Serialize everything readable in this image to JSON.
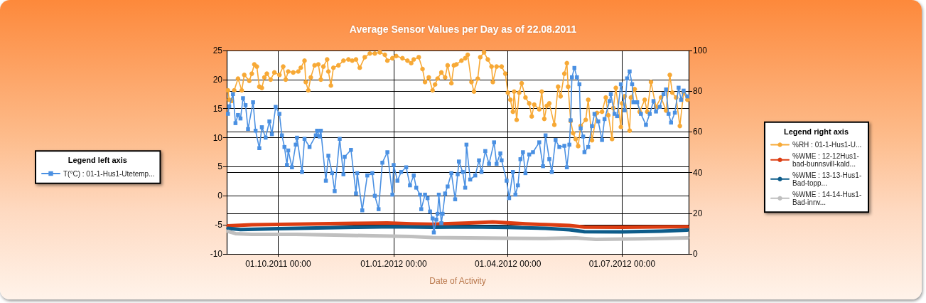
{
  "chart_data": {
    "type": "line",
    "title": "Average Sensor Values per Day as of 22.08.2011",
    "xlabel": "Date of Activity",
    "legend_title": [
      "Legend left axis",
      "Legend right axis"
    ],
    "legend": [
      "left",
      "right"
    ],
    "xlim": [
      "2011-08-21",
      "2012-08-23"
    ],
    "xticks": [
      {
        "value": "2011-10-01",
        "label": "01.10.2011 00:00"
      },
      {
        "value": "2012-01-01",
        "label": "01.01.2012 00:00"
      },
      {
        "value": "2012-04-01",
        "label": "01.04.2012 00:00"
      },
      {
        "value": "2012-07-01",
        "label": "01.07.2012 00:00"
      }
    ],
    "ylim": [
      -10,
      25
    ],
    "yticks": [
      -10,
      -5,
      0,
      5,
      10,
      15,
      20,
      25
    ],
    "y2lim": [
      0,
      100
    ],
    "y2ticks": [
      0,
      20,
      40,
      60,
      80,
      100
    ],
    "grid": true,
    "line_style": "solid",
    "series": [
      {
        "name": "T(°C) : 01-1-Hus1-Utetemp...",
        "color": "#4a90e2",
        "marker": "square",
        "x": [
          "2011-08-22",
          "2011-08-23",
          "2011-08-26",
          "2011-08-28",
          "2011-08-30",
          "2011-09-01",
          "2011-09-03",
          "2011-09-05",
          "2011-09-07",
          "2011-09-11",
          "2011-09-13",
          "2011-09-16",
          "2011-09-18",
          "2011-09-21",
          "2011-09-24",
          "2011-09-26",
          "2011-09-29",
          "2011-10-02",
          "2011-10-04",
          "2011-10-06",
          "2011-10-08",
          "2011-10-09",
          "2011-10-12",
          "2011-10-15",
          "2011-10-16",
          "2011-10-20",
          "2011-10-22",
          "2011-10-26",
          "2011-10-31",
          "2011-11-01",
          "2011-11-03",
          "2011-11-04",
          "2011-11-08",
          "2011-11-10",
          "2011-11-13",
          "2011-11-15",
          "2011-11-19",
          "2011-11-22",
          "2011-11-23",
          "2011-11-28",
          "2011-12-02",
          "2011-12-03",
          "2011-12-07",
          "2011-12-11",
          "2011-12-15",
          "2011-12-17",
          "2011-12-20",
          "2011-12-23",
          "2011-12-27",
          "2011-12-31",
          "2012-01-01",
          "2012-01-04",
          "2012-01-07",
          "2012-01-11",
          "2012-01-14",
          "2012-01-17",
          "2012-01-19",
          "2012-01-22",
          "2012-01-23",
          "2012-01-26",
          "2012-01-28",
          "2012-01-30",
          "2012-02-01",
          "2012-02-02",
          "2012-02-04",
          "2012-02-05",
          "2012-02-06",
          "2012-02-08",
          "2012-02-09",
          "2012-02-11",
          "2012-02-13",
          "2012-02-16",
          "2012-02-19",
          "2012-02-21",
          "2012-02-22",
          "2012-02-25",
          "2012-02-27",
          "2012-02-28",
          "2012-03-02",
          "2012-03-06",
          "2012-03-09",
          "2012-03-11",
          "2012-03-14",
          "2012-03-17",
          "2012-03-21",
          "2012-03-23",
          "2012-03-26",
          "2012-03-27",
          "2012-03-31",
          "2012-04-02",
          "2012-04-05",
          "2012-04-07",
          "2012-04-09",
          "2012-04-11",
          "2012-04-13",
          "2012-04-15",
          "2012-04-18",
          "2012-04-21",
          "2012-04-26",
          "2012-04-29",
          "2012-05-01",
          "2012-05-04",
          "2012-05-06",
          "2012-05-09",
          "2012-05-12",
          "2012-05-16",
          "2012-05-18",
          "2012-05-20",
          "2012-05-21",
          "2012-05-22",
          "2012-05-24",
          "2012-05-26",
          "2012-05-28",
          "2012-05-29",
          "2012-05-31",
          "2012-06-01",
          "2012-06-04",
          "2012-06-07",
          "2012-06-09",
          "2012-06-12",
          "2012-06-15",
          "2012-06-17",
          "2012-06-21",
          "2012-06-22",
          "2012-06-25",
          "2012-06-27",
          "2012-06-30",
          "2012-07-03",
          "2012-07-05",
          "2012-07-07",
          "2012-07-09",
          "2012-07-10",
          "2012-07-13",
          "2012-07-16",
          "2012-07-20",
          "2012-07-23",
          "2012-07-26",
          "2012-07-28",
          "2012-07-31",
          "2012-08-03",
          "2012-08-05",
          "2012-08-07",
          "2012-08-09",
          "2012-08-12",
          "2012-08-15",
          "2012-08-17",
          "2012-08-19",
          "2012-08-22"
        ],
        "values": [
          14.1,
          15.4,
          17.5,
          12.5,
          13.9,
          13.3,
          16.8,
          15.6,
          11.5,
          16.1,
          11.2,
          8.2,
          11.8,
          10.0,
          12.8,
          10.6,
          15.3,
          14.1,
          10.4,
          8.4,
          5.3,
          7.8,
          4.9,
          8.8,
          10.0,
          4.1,
          9.8,
          8.4,
          10.4,
          11.2,
          10.2,
          11.2,
          2.6,
          6.9,
          3.9,
          0.8,
          9.8,
          3.7,
          6.7,
          7.9,
          0.4,
          3.9,
          -2.5,
          3.5,
          3.9,
          0.0,
          -2.3,
          5.7,
          7.5,
          0.2,
          5.3,
          2.6,
          4.1,
          4.9,
          1.8,
          3.5,
          1.4,
          0.2,
          -2.3,
          0.2,
          -0.4,
          -2.7,
          -3.9,
          -6.3,
          -4.1,
          -3.1,
          0.2,
          -4.7,
          -3.1,
          0.4,
          1.6,
          3.9,
          -0.6,
          3.7,
          5.9,
          4.1,
          1.4,
          8.8,
          2.8,
          3.5,
          6.1,
          4.1,
          7.7,
          5.5,
          9.2,
          5.5,
          7.3,
          6.1,
          2.6,
          -0.4,
          4.1,
          0.2,
          1.8,
          6.3,
          7.5,
          3.9,
          7.1,
          7.5,
          9.2,
          5.1,
          10.4,
          6.3,
          4.1,
          9.6,
          8.4,
          8.6,
          4.9,
          8.8,
          13.0,
          20.4,
          22.0,
          20.4,
          19.2,
          11.6,
          10.2,
          7.5,
          8.4,
          12.0,
          14.1,
          12.8,
          9.6,
          13.2,
          16.3,
          17.5,
          14.1,
          13.7,
          19.2,
          14.7,
          20.2,
          21.4,
          19.2,
          16.1,
          16.1,
          14.1,
          12.2,
          14.1,
          16.3,
          14.5,
          15.3,
          17.5,
          18.3,
          14.1,
          12.6,
          14.3,
          18.6,
          16.5,
          18.1,
          17.1
        ]
      },
      {
        "name": "%RH : 01-1-Hus1-U...",
        "color": "#f7a936",
        "marker": "circle",
        "axis": "y2",
        "x": [
          "2011-08-22",
          "2011-08-23",
          "2011-08-25",
          "2011-08-27",
          "2011-08-30",
          "2011-09-02",
          "2011-09-04",
          "2011-09-08",
          "2011-09-10",
          "2011-09-12",
          "2011-09-14",
          "2011-09-16",
          "2011-09-18",
          "2011-09-20",
          "2011-09-22",
          "2011-09-25",
          "2011-09-28",
          "2011-10-02",
          "2011-10-05",
          "2011-10-07",
          "2011-10-09",
          "2011-10-13",
          "2011-10-17",
          "2011-10-19",
          "2011-10-22",
          "2011-10-23",
          "2011-10-25",
          "2011-10-27",
          "2011-10-30",
          "2011-11-02",
          "2011-11-04",
          "2011-11-06",
          "2011-11-09",
          "2011-11-10",
          "2011-11-12",
          "2011-11-14",
          "2011-11-18",
          "2011-11-22",
          "2011-11-26",
          "2011-11-29",
          "2011-12-02",
          "2011-12-05",
          "2011-12-09",
          "2011-12-13",
          "2011-12-17",
          "2011-12-21",
          "2011-12-25",
          "2011-12-27",
          "2011-12-31",
          "2012-01-03",
          "2012-01-08",
          "2012-01-12",
          "2012-01-15",
          "2012-01-17",
          "2012-01-21",
          "2012-01-24",
          "2012-01-26",
          "2012-01-29",
          "2012-02-01",
          "2012-02-03",
          "2012-02-05",
          "2012-02-08",
          "2012-02-11",
          "2012-02-13",
          "2012-02-16",
          "2012-02-18",
          "2012-02-20",
          "2012-02-24",
          "2012-02-27",
          "2012-02-29",
          "2012-03-03",
          "2012-03-05",
          "2012-03-08",
          "2012-03-10",
          "2012-03-13",
          "2012-03-16",
          "2012-03-19",
          "2012-03-20",
          "2012-03-23",
          "2012-03-27",
          "2012-03-30",
          "2012-04-01",
          "2012-04-03",
          "2012-04-05",
          "2012-04-06",
          "2012-04-08",
          "2012-04-10",
          "2012-04-12",
          "2012-04-15",
          "2012-04-18",
          "2012-04-20",
          "2012-04-22",
          "2012-04-26",
          "2012-04-28",
          "2012-04-30",
          "2012-05-02",
          "2012-05-04",
          "2012-05-08",
          "2012-05-11",
          "2012-05-13",
          "2012-05-16",
          "2012-05-18",
          "2012-05-19",
          "2012-05-21",
          "2012-05-23",
          "2012-05-25",
          "2012-05-27",
          "2012-05-29",
          "2012-06-02",
          "2012-06-04",
          "2012-06-07",
          "2012-06-11",
          "2012-06-15",
          "2012-06-18",
          "2012-06-20",
          "2012-06-23",
          "2012-06-24",
          "2012-06-26",
          "2012-06-30",
          "2012-07-01",
          "2012-07-03",
          "2012-07-07",
          "2012-07-08",
          "2012-07-11",
          "2012-07-15",
          "2012-07-19",
          "2012-07-21",
          "2012-07-24",
          "2012-07-28",
          "2012-08-01",
          "2012-08-05",
          "2012-08-08",
          "2012-08-10",
          "2012-08-13",
          "2012-08-16",
          "2012-08-19",
          "2012-08-22"
        ],
        "values": [
          80.4,
          75.8,
          75.2,
          80.4,
          86.2,
          80.4,
          88.0,
          85.1,
          88.6,
          93.2,
          92.1,
          82.2,
          81.6,
          86.8,
          88.6,
          85.7,
          89.2,
          88.0,
          92.1,
          85.7,
          89.7,
          89.2,
          89.7,
          91.5,
          95.0,
          84.5,
          80.4,
          86.8,
          92.7,
          93.2,
          85.7,
          92.1,
          95.6,
          89.7,
          82.8,
          91.5,
          92.7,
          95.0,
          95.6,
          95.0,
          95.6,
          91.5,
          96.7,
          98.5,
          98.5,
          99.1,
          97.9,
          95.0,
          96.2,
          97.3,
          96.2,
          95.0,
          93.8,
          95.6,
          96.7,
          90.9,
          84.5,
          86.8,
          80.4,
          83.3,
          86.2,
          89.2,
          86.8,
          92.7,
          83.9,
          92.7,
          93.2,
          95.0,
          96.2,
          97.9,
          84.5,
          79.8,
          86.2,
          96.7,
          99.1,
          95.6,
          92.1,
          84.5,
          92.1,
          92.1,
          88.6,
          79.3,
          75.8,
          69.9,
          79.8,
          65.9,
          79.3,
          83.9,
          76.9,
          74.0,
          67.6,
          73.4,
          71.1,
          79.8,
          66.4,
          72.8,
          74.0,
          63.5,
          82.2,
          77.5,
          88.6,
          93.8,
          82.2,
          65.3,
          59.4,
          56.5,
          53.0,
          62.9,
          65.9,
          75.8,
          55.9,
          69.3,
          69.9,
          76.9,
          68.2,
          56.5,
          71.7,
          81.6,
          62.4,
          74.0,
          77.5,
          60.6,
          76.9,
          81.0,
          69.9,
          75.8,
          69.9,
          84.5,
          72.3,
          76.9,
          70.5,
          88.0,
          79.3,
          76.9,
          62.9,
          79.3,
          75.8
        ]
      },
      {
        "name": "%WME : 12-12Hus1-bad-bunnsvill-kald...",
        "color": "#dc3d12",
        "marker": "none",
        "axis": "y2",
        "x": [
          "2011-08-22",
          "2011-09-10",
          "2011-10-01",
          "2011-11-01",
          "2011-12-01",
          "2011-12-27",
          "2012-01-15",
          "2012-02-01",
          "2012-03-01",
          "2012-03-20",
          "2012-04-15",
          "2012-05-01",
          "2012-05-20",
          "2012-06-01",
          "2012-07-01",
          "2012-08-01",
          "2012-08-22"
        ],
        "values": [
          13.8,
          14.3,
          14.5,
          14.8,
          15.0,
          15.2,
          14.8,
          14.6,
          15.2,
          15.7,
          14.8,
          14.4,
          14.0,
          13.2,
          13.1,
          13.3,
          13.4
        ]
      },
      {
        "name": "%WME : 13-13-Hus1-Bad-topp...",
        "color": "#0d5c8a",
        "marker": "none",
        "axis": "y2",
        "x": [
          "2011-08-22",
          "2011-09-01",
          "2011-10-01",
          "2011-11-01",
          "2011-12-01",
          "2012-01-01",
          "2012-02-01",
          "2012-03-01",
          "2012-04-01",
          "2012-05-01",
          "2012-05-20",
          "2012-06-01",
          "2012-07-01",
          "2012-08-01",
          "2012-08-22"
        ],
        "values": [
          12.6,
          12.0,
          12.4,
          12.8,
          13.1,
          13.4,
          13.1,
          13.3,
          13.0,
          12.6,
          11.9,
          10.9,
          10.8,
          11.2,
          11.7
        ]
      },
      {
        "name": "%WME : 14-14-Hus1-Bad-innv...",
        "color": "#bfbfbf",
        "marker": "none",
        "axis": "y2",
        "x": [
          "2011-08-22",
          "2011-08-28",
          "2011-09-10",
          "2011-10-15",
          "2011-11-15",
          "2011-12-15",
          "2012-01-15",
          "2012-02-01",
          "2012-03-01",
          "2012-04-01",
          "2012-05-01",
          "2012-05-25",
          "2012-06-10",
          "2012-07-15",
          "2012-08-22"
        ],
        "values": [
          11.1,
          10.0,
          9.6,
          9.6,
          9.3,
          8.9,
          8.6,
          8.0,
          7.9,
          7.7,
          7.6,
          7.9,
          7.2,
          7.4,
          7.9
        ]
      }
    ]
  }
}
